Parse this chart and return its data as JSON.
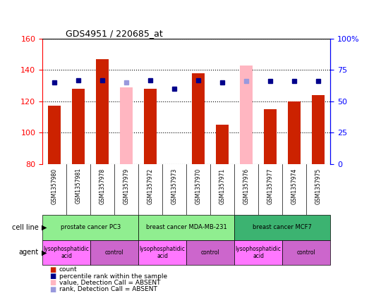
{
  "title": "GDS4951 / 220685_at",
  "samples": [
    "GSM1357980",
    "GSM1357981",
    "GSM1357978",
    "GSM1357979",
    "GSM1357972",
    "GSM1357973",
    "GSM1357970",
    "GSM1357971",
    "GSM1357976",
    "GSM1357977",
    "GSM1357974",
    "GSM1357975"
  ],
  "count_values": [
    117,
    128,
    147,
    null,
    128,
    80,
    138,
    105,
    null,
    115,
    120,
    124
  ],
  "count_absent": [
    null,
    null,
    null,
    129,
    null,
    null,
    null,
    null,
    143,
    null,
    null,
    null
  ],
  "percentile_values": [
    65,
    67,
    67,
    null,
    67,
    60,
    67,
    65,
    null,
    66,
    66,
    66
  ],
  "percentile_absent": [
    null,
    null,
    null,
    65,
    null,
    null,
    null,
    null,
    66,
    null,
    null,
    null
  ],
  "ylim_left": [
    80,
    160
  ],
  "ylim_right": [
    0,
    100
  ],
  "yticks_left": [
    80,
    100,
    120,
    140,
    160
  ],
  "yticks_right": [
    0,
    25,
    50,
    75,
    100
  ],
  "ytick_labels_right": [
    "0",
    "25",
    "50",
    "75",
    "100%"
  ],
  "cell_line_groups": [
    {
      "label": "prostate cancer PC3",
      "start": 0,
      "end": 4,
      "color": "#90EE90"
    },
    {
      "label": "breast cancer MDA-MB-231",
      "start": 4,
      "end": 8,
      "color": "#90EE90"
    },
    {
      "label": "breast cancer MCF7",
      "start": 8,
      "end": 12,
      "color": "#3CB371"
    }
  ],
  "agent_groups": [
    {
      "label": "lysophosphatidic\nacid",
      "start": 0,
      "end": 2,
      "color": "#FF77FF"
    },
    {
      "label": "control",
      "start": 2,
      "end": 4,
      "color": "#CC66CC"
    },
    {
      "label": "lysophosphatidic\nacid",
      "start": 4,
      "end": 6,
      "color": "#FF77FF"
    },
    {
      "label": "control",
      "start": 6,
      "end": 8,
      "color": "#CC66CC"
    },
    {
      "label": "lysophosphatidic\nacid",
      "start": 8,
      "end": 10,
      "color": "#FF77FF"
    },
    {
      "label": "control",
      "start": 10,
      "end": 12,
      "color": "#CC66CC"
    }
  ],
  "bar_color": "#CC2200",
  "absent_bar_color": "#FFB6C1",
  "dot_color": "#00008B",
  "absent_dot_color": "#9999DD",
  "bar_width": 0.55,
  "dot_size": 5,
  "grid_color": "#000000",
  "bg_color": "#FFFFFF",
  "cell_line_label": "cell line",
  "agent_label": "agent",
  "legend_items": [
    {
      "label": "count",
      "color": "#CC2200"
    },
    {
      "label": "percentile rank within the sample",
      "color": "#00008B"
    },
    {
      "label": "value, Detection Call = ABSENT",
      "color": "#FFB6C1"
    },
    {
      "label": "rank, Detection Call = ABSENT",
      "color": "#9999DD"
    }
  ]
}
